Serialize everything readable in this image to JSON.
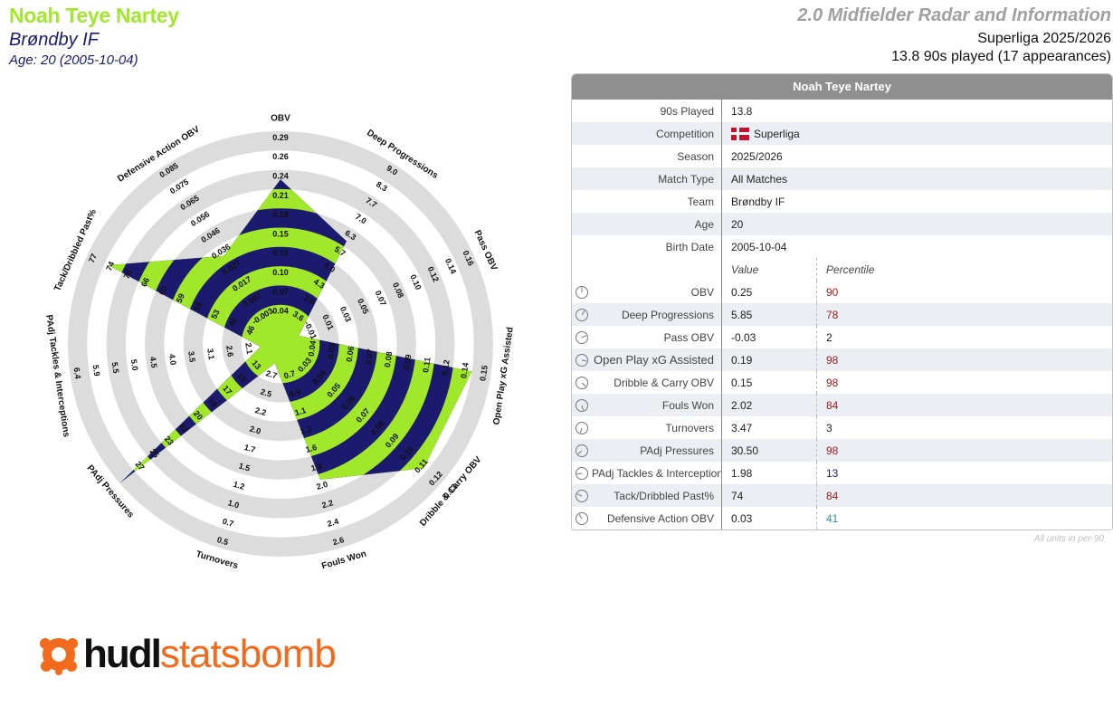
{
  "header": {
    "player_name": "Noah Teye Nartey",
    "club": "Brøndby IF",
    "age_line": "Age: 20 (2005-10-04)",
    "template_title": "2.0 Midfielder Radar and Information",
    "competition_line": "Superliga 2025/2026",
    "played_line": "13.8 90s played (17 appearances)"
  },
  "colors": {
    "name": "#a2e82a",
    "lime": "#a2e82a",
    "navy": "#1c1a6e",
    "ring": "#dcdcdc",
    "pct_high": "#9b1b1b",
    "pct_low": "#1c1a6e",
    "pct_mid": "#2a8fa8",
    "logo_orange": "#f26a1b"
  },
  "info_table": {
    "title": "Noah Teye Nartey",
    "rows": [
      {
        "label": "90s Played",
        "value": "13.8"
      },
      {
        "label": "Competition",
        "value": "Superliga",
        "flag": "denmark"
      },
      {
        "label": "Season",
        "value": "2025/2026"
      },
      {
        "label": "Match Type",
        "value": "All Matches"
      },
      {
        "label": "Team",
        "value": "Brøndby IF"
      },
      {
        "label": "Age",
        "value": "20"
      },
      {
        "label": "Birth Date",
        "value": "2005-10-04"
      }
    ],
    "value_header": "Value",
    "percentile_header": "Percentile",
    "metrics": [
      {
        "label": "OBV",
        "value": "0.25",
        "percentile": "90",
        "pct_color": "#9b1b1b"
      },
      {
        "label": "Deep Progressions",
        "value": "5.85",
        "percentile": "78",
        "pct_color": "#9b1b1b"
      },
      {
        "label": "Pass OBV",
        "value": "-0.03",
        "percentile": "2",
        "pct_color": "#222222"
      },
      {
        "label": "Open Play xG Assisted",
        "value": "0.19",
        "percentile": "98",
        "pct_color": "#9b1b1b"
      },
      {
        "label": "Dribble & Carry OBV",
        "value": "0.15",
        "percentile": "98",
        "pct_color": "#9b1b1b"
      },
      {
        "label": "Fouls Won",
        "value": "2.02",
        "percentile": "84",
        "pct_color": "#9b1b1b"
      },
      {
        "label": "Turnovers",
        "value": "3.47",
        "percentile": "3",
        "pct_color": "#222222"
      },
      {
        "label": "PAdj Pressures",
        "value": "30.50",
        "percentile": "98",
        "pct_color": "#9b1b1b"
      },
      {
        "label": "PAdj Tackles & Interceptions",
        "value": "1.98",
        "percentile": "13",
        "pct_color": "#1c1a6e"
      },
      {
        "label": "Tack/Dribbled Past%",
        "value": "74",
        "percentile": "84",
        "pct_color": "#9b1b1b"
      },
      {
        "label": "Defensive Action OBV",
        "value": "0.03",
        "percentile": "41",
        "pct_color": "#2a8fa8"
      }
    ],
    "footnote": "All units in per-90"
  },
  "chart_data": {
    "type": "radar",
    "axes": [
      {
        "name": "OBV",
        "ticks": [
          "0.04",
          "0.07",
          "0.10",
          "0.12",
          "0.15",
          "0.18",
          "0.21",
          "0.24",
          "0.26",
          "0.29"
        ],
        "fraction": 0.75
      },
      {
        "name": "Deep Progressions",
        "ticks": [
          "3.6",
          "3.9",
          "4.3",
          "5.0",
          "5.7",
          "6.3",
          "7.0",
          "7.7",
          "8.3",
          "9.0"
        ],
        "fraction": 0.53
      },
      {
        "name": "Pass OBV",
        "ticks": [
          "-0.01",
          "0.01",
          "0.03",
          "0.05",
          "0.07",
          "0.08",
          "0.10",
          "0.12",
          "0.14",
          "0.16"
        ],
        "fraction": 0.0
      },
      {
        "name": "Open Play xG Assisted",
        "ticks": [
          "0.04",
          "0.05",
          "0.06",
          "0.07",
          "0.08",
          "0.09",
          "0.11",
          "0.12",
          "0.14",
          "0.15"
        ],
        "fraction": 0.9
      },
      {
        "name": "Dribble & Carry OBV",
        "ticks": [
          "0.03",
          "0.04",
          "0.05",
          "0.06",
          "0.07",
          "0.08",
          "0.09",
          "0.10",
          "0.11",
          "0.12",
          "0.13"
        ],
        "fraction": 0.88
      },
      {
        "name": "Fouls Won",
        "ticks": [
          "0.7",
          "0.9",
          "1.1",
          "1.3",
          "1.6",
          "1.8",
          "2.0",
          "2.2",
          "2.4",
          "2.6"
        ],
        "fraction": 0.63
      },
      {
        "name": "Turnovers",
        "ticks": [
          "2.7",
          "2.5",
          "2.2",
          "2.0",
          "1.7",
          "1.5",
          "1.2",
          "1.0",
          "0.7",
          "0.5"
        ],
        "fraction": 0.0
      },
      {
        "name": "PAdj Pressures",
        "ticks": [
          "13",
          "15",
          "17",
          "19",
          "20",
          "22",
          "23",
          "25",
          "27"
        ],
        "fraction": 1.0
      },
      {
        "name": "PAdj Tackles & Interceptions",
        "ticks": [
          "2.1",
          "2.6",
          "3.1",
          "3.5",
          "4.0",
          "4.5",
          "5.0",
          "5.5",
          "5.9",
          "6.4"
        ],
        "fraction": 0.0
      },
      {
        "name": "Tack/Dribbled Past%",
        "ticks": [
          "46",
          "49",
          "53",
          "56",
          "59",
          "63",
          "66",
          "70",
          "74",
          "77"
        ],
        "fraction": 0.88
      },
      {
        "name": "Defensive Action OBV",
        "ticks": [
          "-0.003",
          "0.007",
          "0.017",
          "0.027",
          "0.036",
          "0.046",
          "0.056",
          "0.065",
          "0.075",
          "0.085"
        ],
        "fraction": 0.44
      }
    ]
  },
  "logo": {
    "brand": "hudl",
    "brand2": "statsbomb"
  }
}
